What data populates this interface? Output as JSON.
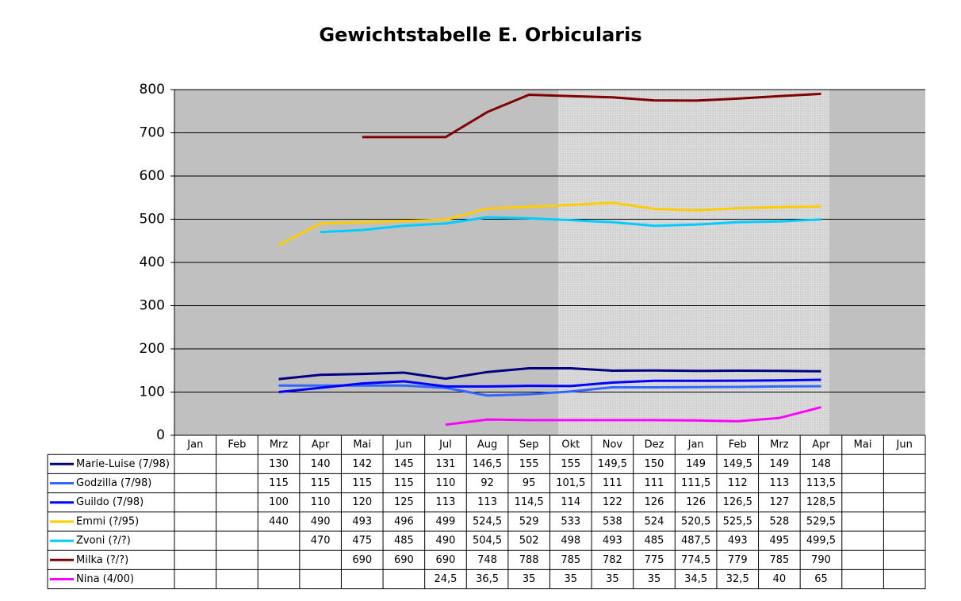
{
  "chart_data": {
    "type": "line",
    "title": "Gewichtstabelle E. Orbicularis",
    "categories": [
      "Jan",
      "Feb",
      "Mrz",
      "Apr",
      "Mai",
      "Jun",
      "Jul",
      "Aug",
      "Sep",
      "Okt",
      "Nov",
      "Dez",
      "Jan",
      "Feb",
      "Mrz",
      "Apr",
      "Mai",
      "Jun"
    ],
    "ylim": [
      0,
      800
    ],
    "yticks": [
      0,
      100,
      200,
      300,
      400,
      500,
      600,
      700,
      800
    ],
    "grid": true,
    "series": [
      {
        "name": "Marie-Luise (7/98)",
        "color": "#000080",
        "values": [
          null,
          null,
          130,
          140,
          142,
          145,
          131,
          146.5,
          155,
          155,
          149.5,
          150,
          149,
          149.5,
          149,
          148,
          null,
          null
        ],
        "value_labels": [
          null,
          null,
          "130",
          "140",
          "142",
          "145",
          "131",
          "146,5",
          "155",
          "155",
          "149,5",
          "150",
          "149",
          "149,5",
          "149",
          "148",
          null,
          null
        ]
      },
      {
        "name": "Godzilla (7/98)",
        "color": "#3366ff",
        "values": [
          null,
          null,
          115,
          115,
          115,
          115,
          110,
          92,
          95,
          101.5,
          111,
          111,
          111.5,
          112,
          113,
          113.5,
          null,
          null
        ],
        "value_labels": [
          null,
          null,
          "115",
          "115",
          "115",
          "115",
          "110",
          "92",
          "95",
          "101,5",
          "111",
          "111",
          "111,5",
          "112",
          "113",
          "113,5",
          null,
          null
        ]
      },
      {
        "name": "Guildo (7/98)",
        "color": "#0000ff",
        "values": [
          null,
          null,
          100,
          110,
          120,
          125,
          113,
          113,
          114.5,
          114,
          122,
          126,
          126,
          126.5,
          127,
          128.5,
          null,
          null
        ],
        "value_labels": [
          null,
          null,
          "100",
          "110",
          "120",
          "125",
          "113",
          "113",
          "114,5",
          "114",
          "122",
          "126",
          "126",
          "126,5",
          "127",
          "128,5",
          null,
          null
        ]
      },
      {
        "name": "Emmi (?/95)",
        "color": "#ffcc00",
        "values": [
          null,
          null,
          440,
          490,
          493,
          496,
          499,
          524.5,
          529,
          533,
          538,
          524,
          520.5,
          525.5,
          528,
          529.5,
          null,
          null
        ],
        "value_labels": [
          null,
          null,
          "440",
          "490",
          "493",
          "496",
          "499",
          "524,5",
          "529",
          "533",
          "538",
          "524",
          "520,5",
          "525,5",
          "528",
          "529,5",
          null,
          null
        ]
      },
      {
        "name": "Zvoni (?/?)",
        "color": "#00ccff",
        "values": [
          null,
          null,
          null,
          470,
          475,
          485,
          490,
          504.5,
          502,
          498,
          493,
          485,
          487.5,
          493,
          495,
          499.5,
          null,
          null
        ],
        "value_labels": [
          null,
          null,
          null,
          "470",
          "475",
          "485",
          "490",
          "504,5",
          "502",
          "498",
          "493",
          "485",
          "487,5",
          "493",
          "495",
          "499,5",
          null,
          null
        ]
      },
      {
        "name": "Milka (?/?)",
        "color": "#800000",
        "values": [
          null,
          null,
          null,
          null,
          690,
          690,
          690,
          748,
          788,
          785,
          782,
          775,
          774.5,
          779,
          785,
          790,
          null,
          null
        ],
        "value_labels": [
          null,
          null,
          null,
          null,
          "690",
          "690",
          "690",
          "748",
          "788",
          "785",
          "782",
          "775",
          "774,5",
          "779",
          "785",
          "790",
          null,
          null
        ]
      },
      {
        "name": "Nina (4/00)",
        "color": "#ff00ff",
        "values": [
          null,
          null,
          null,
          null,
          null,
          null,
          24.5,
          36.5,
          35,
          35,
          35,
          35,
          34.5,
          32.5,
          40,
          65,
          null,
          null
        ],
        "value_labels": [
          null,
          null,
          null,
          null,
          null,
          null,
          "24,5",
          "36,5",
          "35",
          "35",
          "35",
          "35",
          "34,5",
          "32,5",
          "40",
          "65",
          null,
          null
        ]
      }
    ]
  }
}
